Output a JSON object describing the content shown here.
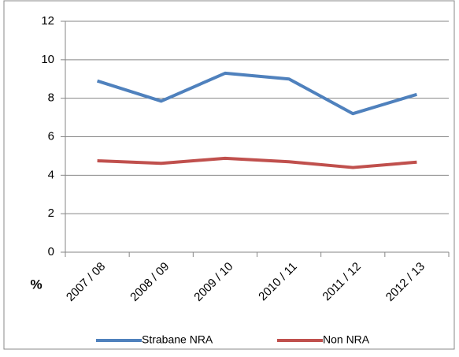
{
  "chart_data": {
    "type": "line",
    "categories": [
      "2007 / 08",
      "2008 / 09",
      "2009 / 10",
      "2010 / 11",
      "2011 / 12",
      "2012 / 13"
    ],
    "series": [
      {
        "name": "Strabane NRA",
        "color": "#4f81bd",
        "values": [
          8.9,
          7.85,
          9.3,
          9.0,
          7.2,
          8.2
        ]
      },
      {
        "name": "Non NRA",
        "color": "#c0504d",
        "values": [
          4.75,
          4.62,
          4.88,
          4.7,
          4.4,
          4.68
        ]
      }
    ],
    "ylabel": "%",
    "ylim": [
      0,
      12
    ],
    "yticks": [
      0,
      2,
      4,
      6,
      8,
      10,
      12
    ],
    "grid": true,
    "legend": "bottom"
  }
}
